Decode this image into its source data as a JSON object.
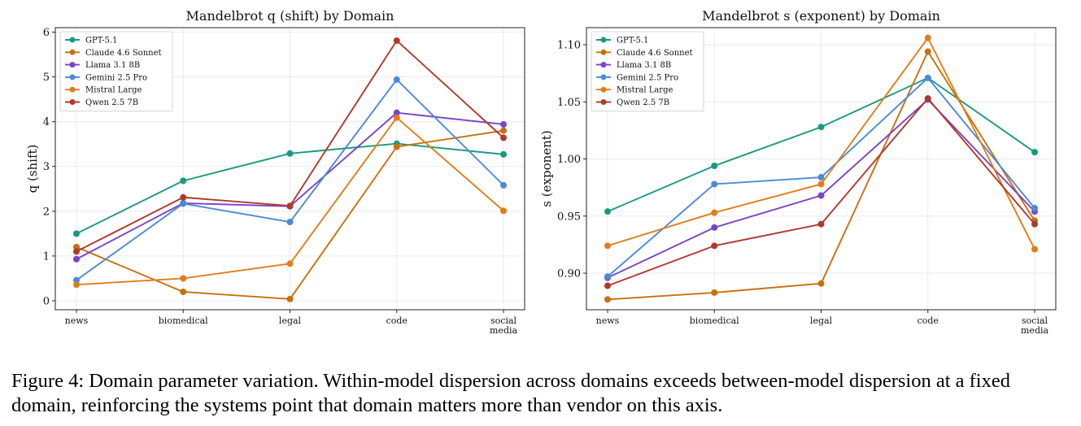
{
  "chart_data": [
    {
      "type": "line",
      "title": "Mandelbrot q (shift) by Domain",
      "xlabel": "",
      "ylabel": "q (shift)",
      "categories": [
        "news",
        "biomedical",
        "legal",
        "code",
        "social\nmedia"
      ],
      "ylim": [
        -0.2,
        6.1
      ],
      "yticks": [
        0,
        1,
        2,
        3,
        4,
        5,
        6
      ],
      "grid": true,
      "legend": "top-left",
      "series": [
        {
          "name": "GPT-5.1",
          "color": "#1a9a80",
          "values": [
            1.5,
            2.68,
            3.29,
            3.51,
            3.27
          ]
        },
        {
          "name": "Claude 4.6 Sonnet",
          "color": "#c8700e",
          "values": [
            1.2,
            0.2,
            0.04,
            3.44,
            3.8
          ]
        },
        {
          "name": "Llama 3.1 8B",
          "color": "#7a45c8",
          "values": [
            0.93,
            2.18,
            2.11,
            4.2,
            3.94
          ]
        },
        {
          "name": "Gemini 2.5 Pro",
          "color": "#4a8ad8",
          "values": [
            0.46,
            2.17,
            1.76,
            4.94,
            2.58
          ]
        },
        {
          "name": "Mistral Large",
          "color": "#e07d1a",
          "values": [
            0.36,
            0.5,
            0.83,
            4.09,
            2.01
          ]
        },
        {
          "name": "Qwen 2.5 7B",
          "color": "#b0392e",
          "values": [
            1.1,
            2.31,
            2.12,
            5.81,
            3.64
          ]
        }
      ]
    },
    {
      "type": "line",
      "title": "Mandelbrot s (exponent) by Domain",
      "xlabel": "",
      "ylabel": "s (exponent)",
      "categories": [
        "news",
        "biomedical",
        "legal",
        "code",
        "social\nmedia"
      ],
      "ylim": [
        0.868,
        1.115
      ],
      "yticks": [
        0.9,
        0.95,
        1.0,
        1.05,
        1.1
      ],
      "yticklabels": [
        "0.90",
        "0.95",
        "1.00",
        "1.05",
        "1.10"
      ],
      "grid": true,
      "legend": "top-left",
      "series": [
        {
          "name": "GPT-5.1",
          "color": "#1a9a80",
          "values": [
            0.954,
            0.994,
            1.028,
            1.071,
            1.006
          ]
        },
        {
          "name": "Claude 4.6 Sonnet",
          "color": "#c8700e",
          "values": [
            0.877,
            0.883,
            0.891,
            1.094,
            0.946
          ]
        },
        {
          "name": "Llama 3.1 8B",
          "color": "#7a45c8",
          "values": [
            0.896,
            0.94,
            0.968,
            1.052,
            0.954
          ]
        },
        {
          "name": "Gemini 2.5 Pro",
          "color": "#4a8ad8",
          "values": [
            0.897,
            0.978,
            0.984,
            1.071,
            0.957
          ]
        },
        {
          "name": "Mistral Large",
          "color": "#e07d1a",
          "values": [
            0.924,
            0.953,
            0.978,
            1.106,
            0.921
          ]
        },
        {
          "name": "Qwen 2.5 7B",
          "color": "#b0392e",
          "values": [
            0.889,
            0.924,
            0.943,
            1.053,
            0.943
          ]
        }
      ]
    }
  ],
  "caption": "Figure 4: Domain parameter variation. Within-model dispersion across domains exceeds between-model dispersion at a fixed domain, reinforcing the systems point that domain matters more than vendor on this axis."
}
